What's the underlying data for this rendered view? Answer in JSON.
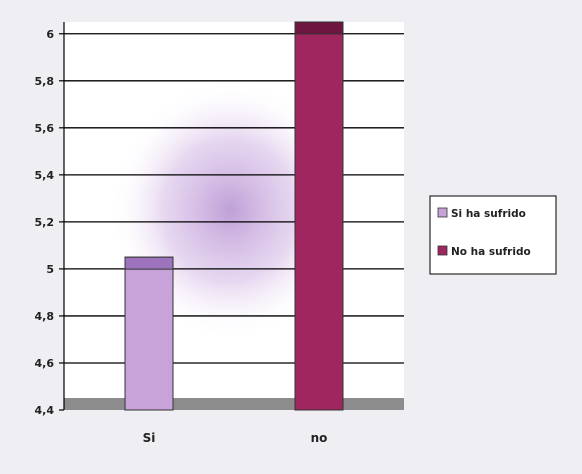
{
  "chart_data": {
    "type": "bar",
    "categories": [
      "Si",
      "no"
    ],
    "series": [
      {
        "name": "Si ha sufrido",
        "color": "#c7a3d9",
        "values": [
          5.05,
          null
        ]
      },
      {
        "name": "No ha sufrido",
        "color": "#a0265f",
        "values": [
          null,
          6.05
        ]
      }
    ],
    "yticks": [
      "6",
      "5,8",
      "5,6",
      "5,4",
      "5,2",
      "5",
      "4,8",
      "4,6",
      "4,4"
    ],
    "ylim": [
      4.4,
      6.05
    ],
    "grid": true,
    "legend_position": "right",
    "title": "",
    "xlabel": "",
    "ylabel": ""
  }
}
